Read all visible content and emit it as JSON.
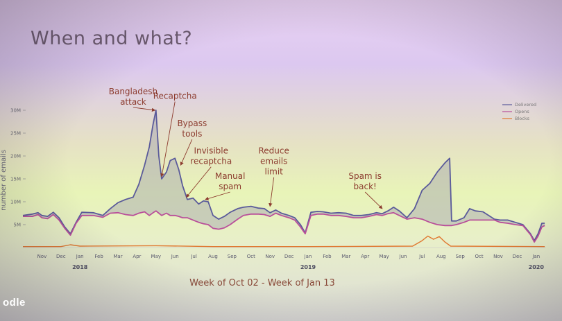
{
  "slide": {
    "title": "When and what?",
    "logo_text": "odle"
  },
  "chart_data": {
    "type": "area",
    "xlabel": "Week of Oct 02 - Week of Jan 13",
    "ylabel": "number of emails",
    "ylim": [
      0,
      32000000
    ],
    "y_ticks": [
      {
        "value": 5000000,
        "label": "5M"
      },
      {
        "value": 10000000,
        "label": "10M"
      },
      {
        "value": 15000000,
        "label": "15M"
      },
      {
        "value": 20000000,
        "label": "20M"
      },
      {
        "value": 25000000,
        "label": "25M"
      },
      {
        "value": 30000000,
        "label": "30M"
      }
    ],
    "x_ticks": [
      {
        "month": 1,
        "label": "Nov"
      },
      {
        "month": 2,
        "label": "Dec"
      },
      {
        "month": 3,
        "label": "Jan"
      },
      {
        "month": 4,
        "label": "Feb"
      },
      {
        "month": 5,
        "label": "Mar"
      },
      {
        "month": 6,
        "label": "Apr"
      },
      {
        "month": 7,
        "label": "May"
      },
      {
        "month": 8,
        "label": "Jun"
      },
      {
        "month": 9,
        "label": "Jul"
      },
      {
        "month": 10,
        "label": "Aug"
      },
      {
        "month": 11,
        "label": "Sep"
      },
      {
        "month": 12,
        "label": "Oct"
      },
      {
        "month": 13,
        "label": "Nov"
      },
      {
        "month": 14,
        "label": "Dec"
      },
      {
        "month": 15,
        "label": "Jan"
      },
      {
        "month": 16,
        "label": "Feb"
      },
      {
        "month": 17,
        "label": "Mar"
      },
      {
        "month": 18,
        "label": "Apr"
      },
      {
        "month": 19,
        "label": "May"
      },
      {
        "month": 20,
        "label": "Jun"
      },
      {
        "month": 21,
        "label": "Jul"
      },
      {
        "month": 22,
        "label": "Aug"
      },
      {
        "month": 23,
        "label": "Sep"
      },
      {
        "month": 24,
        "label": "Oct"
      },
      {
        "month": 25,
        "label": "Nov"
      },
      {
        "month": 26,
        "label": "Dec"
      },
      {
        "month": 27,
        "label": "Jan"
      }
    ],
    "years": [
      {
        "month": 3,
        "label": "2018"
      },
      {
        "month": 15,
        "label": "2019"
      },
      {
        "month": 27,
        "label": "2020"
      }
    ],
    "series": [
      {
        "name": "Delivered",
        "color": "#5a5a9a",
        "points": [
          [
            0,
            7.0
          ],
          [
            0.5,
            7.3
          ],
          [
            0.8,
            7.6
          ],
          [
            1.0,
            7.0
          ],
          [
            1.3,
            6.8
          ],
          [
            1.6,
            7.7
          ],
          [
            1.9,
            6.5
          ],
          [
            2.2,
            4.5
          ],
          [
            2.5,
            3.0
          ],
          [
            2.8,
            5.5
          ],
          [
            3.1,
            7.7
          ],
          [
            3.7,
            7.6
          ],
          [
            4.2,
            7.0
          ],
          [
            4.6,
            8.5
          ],
          [
            5.0,
            9.8
          ],
          [
            5.4,
            10.5
          ],
          [
            5.8,
            11.0
          ],
          [
            6.1,
            13.8
          ],
          [
            6.4,
            18.0
          ],
          [
            6.65,
            22.0
          ],
          [
            6.85,
            27.0
          ],
          [
            7.0,
            30.0
          ],
          [
            7.15,
            20.0
          ],
          [
            7.3,
            15.0
          ],
          [
            7.55,
            16.5
          ],
          [
            7.75,
            19.0
          ],
          [
            8.0,
            19.5
          ],
          [
            8.2,
            17.0
          ],
          [
            8.4,
            13.5
          ],
          [
            8.65,
            10.5
          ],
          [
            8.95,
            10.8
          ],
          [
            9.25,
            9.5
          ],
          [
            9.5,
            10.2
          ],
          [
            9.75,
            10.0
          ],
          [
            10.0,
            7.0
          ],
          [
            10.3,
            6.2
          ],
          [
            10.6,
            6.8
          ],
          [
            10.9,
            7.7
          ],
          [
            11.3,
            8.5
          ],
          [
            11.6,
            8.8
          ],
          [
            12.0,
            9.0
          ],
          [
            12.4,
            8.6
          ],
          [
            12.7,
            8.5
          ],
          [
            13.0,
            7.6
          ],
          [
            13.3,
            8.2
          ],
          [
            13.6,
            7.5
          ],
          [
            14.0,
            7.0
          ],
          [
            14.3,
            6.5
          ],
          [
            14.6,
            5.0
          ],
          [
            14.85,
            3.2
          ],
          [
            15.15,
            7.7
          ],
          [
            15.5,
            7.9
          ],
          [
            15.8,
            7.8
          ],
          [
            16.2,
            7.5
          ],
          [
            16.6,
            7.6
          ],
          [
            17.0,
            7.5
          ],
          [
            17.4,
            7.0
          ],
          [
            17.8,
            7.0
          ],
          [
            18.2,
            7.2
          ],
          [
            18.6,
            7.6
          ],
          [
            18.9,
            7.4
          ],
          [
            19.2,
            8.0
          ],
          [
            19.5,
            8.8
          ],
          [
            19.8,
            8.0
          ],
          [
            20.2,
            6.5
          ],
          [
            20.6,
            8.5
          ],
          [
            21.0,
            12.5
          ],
          [
            21.4,
            14.0
          ],
          [
            21.8,
            16.5
          ],
          [
            22.2,
            18.5
          ],
          [
            22.45,
            19.5
          ],
          [
            22.55,
            5.8
          ],
          [
            22.8,
            5.8
          ],
          [
            23.2,
            6.5
          ],
          [
            23.5,
            8.5
          ],
          [
            23.8,
            8.0
          ],
          [
            24.2,
            7.8
          ],
          [
            24.5,
            7.0
          ],
          [
            24.8,
            6.2
          ],
          [
            25.1,
            6.0
          ],
          [
            25.5,
            6.0
          ],
          [
            25.9,
            5.5
          ],
          [
            26.3,
            5.0
          ],
          [
            26.7,
            3.0
          ],
          [
            26.9,
            1.5
          ],
          [
            27.1,
            3.0
          ],
          [
            27.3,
            5.3
          ],
          [
            27.45,
            5.3
          ]
        ]
      },
      {
        "name": "Opens",
        "color": "#b94f9a",
        "points": [
          [
            0,
            6.8
          ],
          [
            0.5,
            6.8
          ],
          [
            0.8,
            7.2
          ],
          [
            1.0,
            6.5
          ],
          [
            1.3,
            6.3
          ],
          [
            1.6,
            7.2
          ],
          [
            1.9,
            6.0
          ],
          [
            2.2,
            4.2
          ],
          [
            2.5,
            2.7
          ],
          [
            2.8,
            5.3
          ],
          [
            3.1,
            7.0
          ],
          [
            3.7,
            7.0
          ],
          [
            4.2,
            6.6
          ],
          [
            4.6,
            7.5
          ],
          [
            5.0,
            7.6
          ],
          [
            5.4,
            7.2
          ],
          [
            5.8,
            7.0
          ],
          [
            6.1,
            7.5
          ],
          [
            6.4,
            7.8
          ],
          [
            6.65,
            7.0
          ],
          [
            6.85,
            7.6
          ],
          [
            7.0,
            8.0
          ],
          [
            7.15,
            7.5
          ],
          [
            7.3,
            7.0
          ],
          [
            7.55,
            7.5
          ],
          [
            7.75,
            7.0
          ],
          [
            8.0,
            7.0
          ],
          [
            8.2,
            6.8
          ],
          [
            8.4,
            6.5
          ],
          [
            8.65,
            6.5
          ],
          [
            8.95,
            6.0
          ],
          [
            9.25,
            5.5
          ],
          [
            9.5,
            5.2
          ],
          [
            9.75,
            5.0
          ],
          [
            10.0,
            4.2
          ],
          [
            10.3,
            4.0
          ],
          [
            10.6,
            4.3
          ],
          [
            10.9,
            5.0
          ],
          [
            11.3,
            6.2
          ],
          [
            11.6,
            7.0
          ],
          [
            12.0,
            7.3
          ],
          [
            12.4,
            7.3
          ],
          [
            12.7,
            7.2
          ],
          [
            13.0,
            6.8
          ],
          [
            13.3,
            7.5
          ],
          [
            13.6,
            7.0
          ],
          [
            14.0,
            6.5
          ],
          [
            14.3,
            6.0
          ],
          [
            14.6,
            4.5
          ],
          [
            14.85,
            3.0
          ],
          [
            15.15,
            7.0
          ],
          [
            15.5,
            7.3
          ],
          [
            15.8,
            7.3
          ],
          [
            16.2,
            7.0
          ],
          [
            16.6,
            7.0
          ],
          [
            17.0,
            6.8
          ],
          [
            17.4,
            6.5
          ],
          [
            17.8,
            6.5
          ],
          [
            18.2,
            6.8
          ],
          [
            18.6,
            7.2
          ],
          [
            18.9,
            7.0
          ],
          [
            19.2,
            7.4
          ],
          [
            19.5,
            7.6
          ],
          [
            19.8,
            7.0
          ],
          [
            20.2,
            6.2
          ],
          [
            20.6,
            6.5
          ],
          [
            21.0,
            6.2
          ],
          [
            21.4,
            5.5
          ],
          [
            21.8,
            5.0
          ],
          [
            22.2,
            4.8
          ],
          [
            22.45,
            4.8
          ],
          [
            22.55,
            4.8
          ],
          [
            22.8,
            5.0
          ],
          [
            23.2,
            5.5
          ],
          [
            23.5,
            6.0
          ],
          [
            23.8,
            6.0
          ],
          [
            24.2,
            6.0
          ],
          [
            24.5,
            6.0
          ],
          [
            24.8,
            6.0
          ],
          [
            25.1,
            5.5
          ],
          [
            25.5,
            5.3
          ],
          [
            25.9,
            5.0
          ],
          [
            26.3,
            4.8
          ],
          [
            26.7,
            2.8
          ],
          [
            26.9,
            1.2
          ],
          [
            27.1,
            2.5
          ],
          [
            27.3,
            4.5
          ],
          [
            27.45,
            4.8
          ]
        ]
      },
      {
        "name": "Blocks",
        "color": "#e07830",
        "points": [
          [
            0,
            0.2
          ],
          [
            2.0,
            0.2
          ],
          [
            2.5,
            0.6
          ],
          [
            3.0,
            0.3
          ],
          [
            7.0,
            0.4
          ],
          [
            10.0,
            0.2
          ],
          [
            15.0,
            0.2
          ],
          [
            20.5,
            0.3
          ],
          [
            21.0,
            1.5
          ],
          [
            21.3,
            2.5
          ],
          [
            21.6,
            1.8
          ],
          [
            21.9,
            2.4
          ],
          [
            22.2,
            1.2
          ],
          [
            22.5,
            0.3
          ],
          [
            27.45,
            0.2
          ]
        ]
      }
    ],
    "annotations": [
      {
        "lines": [
          "Bangladesh",
          "attack"
        ],
        "month": 5.8,
        "value": 33.5,
        "target_month": 6.95,
        "target_value": 30.0
      },
      {
        "lines": [
          "Recaptcha"
        ],
        "month": 8.0,
        "value": 32.5,
        "target_month": 7.3,
        "target_value": 15.5
      },
      {
        "lines": [
          "Bypass",
          "tools"
        ],
        "month": 8.9,
        "value": 26.5,
        "target_month": 8.3,
        "target_value": 18.0
      },
      {
        "lines": [
          "Invisible",
          "recaptcha"
        ],
        "month": 9.9,
        "value": 20.5,
        "target_month": 8.6,
        "target_value": 11.0
      },
      {
        "lines": [
          "Manual",
          "spam"
        ],
        "month": 10.9,
        "value": 15.0,
        "target_month": 9.6,
        "target_value": 10.5
      },
      {
        "lines": [
          "Reduce",
          "emails",
          "limit"
        ],
        "month": 13.2,
        "value": 20.5,
        "target_month": 13.0,
        "target_value": 9.0
      },
      {
        "lines": [
          "Spam is",
          "back!"
        ],
        "month": 18.0,
        "value": 15.0,
        "target_month": 18.9,
        "target_value": 8.5
      }
    ],
    "legend": [
      {
        "label": "Delivered",
        "color": "#5a5a9a"
      },
      {
        "label": "Opens",
        "color": "#b94f9a"
      },
      {
        "label": "Blocks",
        "color": "#e07830"
      }
    ],
    "legend_position": "top-right",
    "grid": false
  }
}
